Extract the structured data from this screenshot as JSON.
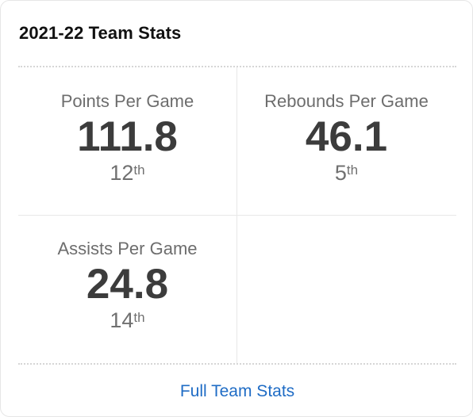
{
  "card": {
    "title": "2021-22 Team Stats"
  },
  "stats": [
    {
      "label": "Points Per Game",
      "value": "111.8",
      "rank_number": "12",
      "rank_suffix": "th"
    },
    {
      "label": "Rebounds Per Game",
      "value": "46.1",
      "rank_number": "5",
      "rank_suffix": "th"
    },
    {
      "label": "Assists Per Game",
      "value": "24.8",
      "rank_number": "14",
      "rank_suffix": "th"
    }
  ],
  "footer": {
    "link_label": "Full Team Stats"
  },
  "colors": {
    "link": "#1f6cc5",
    "value": "#3c3c3c",
    "label": "#6d6d6d"
  }
}
